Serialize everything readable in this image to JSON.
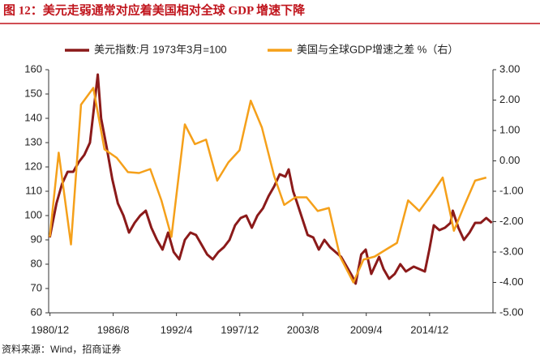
{
  "chart_data": {
    "type": "line",
    "title": "图 12：美元走弱通常对应着美国相对全球 GDP 增速下降",
    "source": "资料来源：Wind，招商证券",
    "xlim": [
      1980.8,
      2020.6
    ],
    "xticks": [
      {
        "value": 1980.92,
        "label": "1980/12"
      },
      {
        "value": 1986.58,
        "label": "1986/8"
      },
      {
        "value": 1992.25,
        "label": "1992/4"
      },
      {
        "value": 1997.92,
        "label": "1997/12"
      },
      {
        "value": 2003.58,
        "label": "2003/8"
      },
      {
        "value": 2009.25,
        "label": "2009/4"
      },
      {
        "value": 2014.92,
        "label": "2014/12"
      }
    ],
    "ylim": [
      60,
      160
    ],
    "yticks": [
      60,
      70,
      80,
      90,
      100,
      110,
      120,
      130,
      140,
      150,
      160
    ],
    "y2lim": [
      -5,
      3
    ],
    "y2ticks": [
      {
        "value": -5,
        "label": "-5.00"
      },
      {
        "value": -4,
        "label": "-4.00"
      },
      {
        "value": -3,
        "label": "-3.00"
      },
      {
        "value": -2,
        "label": "-2.00"
      },
      {
        "value": -1,
        "label": "-1.00"
      },
      {
        "value": 0,
        "label": "0.00"
      },
      {
        "value": 1,
        "label": "1.00"
      },
      {
        "value": 2,
        "label": "2.00"
      },
      {
        "value": 3,
        "label": "3.00"
      }
    ],
    "series": [
      {
        "name": "美元指数:月 1973年3月=100",
        "color": "#8b1a1a",
        "width": 3,
        "x": [
          1980.9,
          1981.5,
          1982,
          1982.5,
          1983,
          1983.5,
          1984,
          1984.5,
          1985,
          1985.2,
          1985.5,
          1986,
          1986.5,
          1987,
          1987.5,
          1988,
          1988.5,
          1989,
          1989.5,
          1990,
          1990.5,
          1991,
          1991.5,
          1992,
          1992.5,
          1993,
          1993.5,
          1994,
          1994.5,
          1995,
          1995.5,
          1996,
          1996.5,
          1997,
          1997.5,
          1998,
          1998.5,
          1999,
          1999.5,
          2000,
          2000.5,
          2001,
          2001.5,
          2002,
          2002.3,
          2002.7,
          2003,
          2003.5,
          2004,
          2004.5,
          2005,
          2005.5,
          2006,
          2006.5,
          2007,
          2007.5,
          2008,
          2008.3,
          2008.8,
          2009.2,
          2009.7,
          2010,
          2010.4,
          2010.8,
          2011.3,
          2011.8,
          2012.3,
          2012.8,
          2013.5,
          2014,
          2014.5,
          2014.9,
          2015.3,
          2015.8,
          2016.3,
          2016.8,
          2017,
          2017.5,
          2018,
          2018.5,
          2019,
          2019.5,
          2020,
          2020.5
        ],
        "values": [
          91,
          105,
          113,
          118,
          118,
          122,
          125,
          130,
          150,
          158,
          140,
          128,
          115,
          105,
          100,
          93,
          97,
          100,
          102,
          95,
          90,
          86,
          93,
          85,
          82,
          90,
          93,
          92,
          88,
          84,
          82,
          85,
          87,
          90,
          96,
          99,
          100,
          95,
          100,
          103,
          108,
          112,
          117,
          116,
          119,
          110,
          106,
          99,
          92,
          91,
          86,
          90,
          87,
          85,
          83,
          79,
          75,
          72,
          84,
          86,
          76,
          79,
          83,
          78,
          74,
          76,
          80,
          77,
          79,
          78,
          77,
          86,
          96,
          94,
          95,
          97,
          102,
          95,
          90,
          93,
          97,
          97,
          99,
          97
        ]
      },
      {
        "name": "美国与全球GDP增速之差 %（右）",
        "color": "#f5a01a",
        "width": 2.5,
        "axis": "y2",
        "x": [
          1980.9,
          1981.7,
          1982.8,
          1983.7,
          1984.8,
          1985.8,
          1986.9,
          1987.9,
          1988.9,
          1989.9,
          1990.9,
          1991.8,
          1993.0,
          1993.9,
          1994.9,
          1995.9,
          1996.9,
          1997.9,
          1998.9,
          1999.9,
          2001.0,
          2001.9,
          2002.9,
          2003.9,
          2004.9,
          2005.9,
          2006.9,
          2008.1,
          2009.0,
          2010.0,
          2011.1,
          2012.0,
          2013.0,
          2014.0,
          2015.1,
          2016.1,
          2017.1,
          2018.0,
          2019.0,
          2020.0
        ],
        "values": [
          -2.5,
          0.27,
          -2.75,
          1.85,
          2.4,
          0.38,
          0.1,
          -0.37,
          -0.4,
          -0.27,
          -1.3,
          -2.5,
          1.2,
          0.55,
          0.7,
          -0.65,
          -0.05,
          0.35,
          1.98,
          1.1,
          -0.5,
          -1.45,
          -1.2,
          -1.2,
          -1.65,
          -1.55,
          -3.15,
          -4.0,
          -3.25,
          -3.15,
          -2.9,
          -2.7,
          -1.3,
          -1.65,
          -1.1,
          -0.55,
          -2.3,
          -1.5,
          -0.65,
          -0.55
        ]
      }
    ]
  }
}
